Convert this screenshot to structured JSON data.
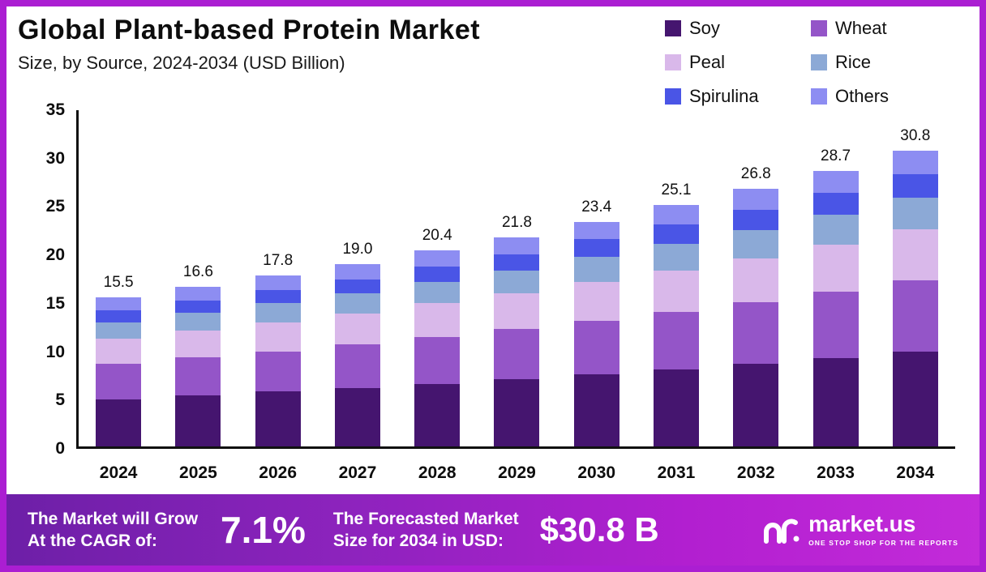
{
  "title": "Global Plant-based Protein Market",
  "subtitle": "Size, by Source, 2024-2034 (USD Billion)",
  "colors": {
    "frame_border": "#ab1ed2",
    "axis": "#111111",
    "banner_gradient_start": "#6d1fa7",
    "banner_gradient_end": "#c32bd9"
  },
  "legend": [
    {
      "label": "Soy",
      "color": "#45156f"
    },
    {
      "label": "Wheat",
      "color": "#9455c8"
    },
    {
      "label": "Peal",
      "color": "#d9b8ea"
    },
    {
      "label": "Rice",
      "color": "#8ca9d6"
    },
    {
      "label": "Spirulina",
      "color": "#4a55e6"
    },
    {
      "label": "Others",
      "color": "#8d8df2"
    }
  ],
  "chart_data": {
    "type": "bar",
    "stacked": true,
    "categories": [
      "2024",
      "2025",
      "2026",
      "2027",
      "2028",
      "2029",
      "2030",
      "2031",
      "2032",
      "2033",
      "2034"
    ],
    "totals_display": [
      "15.5",
      "16.6",
      "17.8",
      "19.0",
      "20.4",
      "21.8",
      "23.4",
      "25.1",
      "26.8",
      "28.7",
      "30.8"
    ],
    "totals": [
      15.5,
      16.6,
      17.8,
      19.0,
      20.4,
      21.8,
      23.4,
      25.1,
      26.8,
      28.7,
      30.8
    ],
    "series": [
      {
        "name": "Soy",
        "color": "#45156f",
        "values": [
          4.9,
          5.3,
          5.7,
          6.1,
          6.5,
          7.0,
          7.5,
          8.0,
          8.6,
          9.2,
          9.9
        ]
      },
      {
        "name": "Wheat",
        "color": "#9455c8",
        "values": [
          3.7,
          4.0,
          4.2,
          4.5,
          4.9,
          5.2,
          5.6,
          6.0,
          6.4,
          6.9,
          7.4
        ]
      },
      {
        "name": "Peal",
        "color": "#d9b8ea",
        "values": [
          2.6,
          2.8,
          3.0,
          3.2,
          3.5,
          3.7,
          4.0,
          4.3,
          4.6,
          4.9,
          5.3
        ]
      },
      {
        "name": "Rice",
        "color": "#8ca9d6",
        "values": [
          1.7,
          1.8,
          2.0,
          2.1,
          2.2,
          2.4,
          2.6,
          2.8,
          2.9,
          3.1,
          3.3
        ]
      },
      {
        "name": "Spirulina",
        "color": "#4a55e6",
        "values": [
          1.3,
          1.3,
          1.4,
          1.5,
          1.6,
          1.7,
          1.9,
          2.0,
          2.1,
          2.3,
          2.4
        ]
      },
      {
        "name": "Others",
        "color": "#8d8df2",
        "values": [
          1.3,
          1.4,
          1.5,
          1.6,
          1.7,
          1.8,
          1.8,
          2.0,
          2.2,
          2.3,
          2.5
        ]
      }
    ],
    "title": "Global Plant-based Protein Market",
    "subtitle": "Size, by Source, 2024-2034 (USD Billion)",
    "xlabel": "",
    "ylabel": "",
    "ylim": [
      0,
      35
    ],
    "yticks": [
      0,
      5,
      10,
      15,
      20,
      25,
      30,
      35
    ],
    "grid": false,
    "legend_position": "top-right"
  },
  "banner": {
    "cagr_label_line1": "The Market will Grow",
    "cagr_label_line2": "At the CAGR of:",
    "cagr_value": "7.1%",
    "forecast_label_line1": "The Forecasted Market",
    "forecast_label_line2": "Size for 2034 in USD:",
    "forecast_value": "$30.8 B",
    "logo_name": "market.us",
    "logo_slogan": "ONE STOP SHOP FOR THE REPORTS"
  }
}
